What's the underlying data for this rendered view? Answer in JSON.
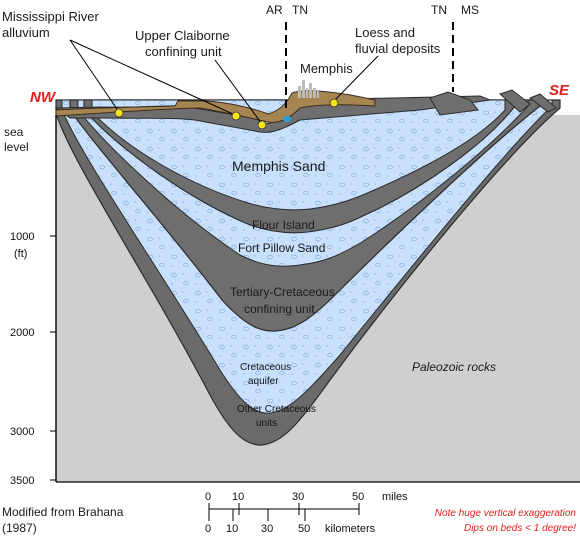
{
  "colors": {
    "sand": "#c8e0fb",
    "clay": "#6e6e6e",
    "paleozoic": "#cfcfcf",
    "alluvium": "#a78553",
    "point": "#f7e51a",
    "river": "#2aa0da",
    "accent_red": "#e0201b"
  },
  "direction": {
    "left": "NW",
    "right": "SE"
  },
  "state_lines": {
    "line1": "AR",
    "line1b": "TN",
    "line2": "TN",
    "line2b": "MS"
  },
  "callouts": {
    "alluvium_1": "Mississippi River",
    "alluvium_2": "alluvium",
    "claiborne_1": "Upper Claiborne",
    "claiborne_2": "confining unit",
    "loess_1": "Loess and",
    "loess_2": "fluvial deposits",
    "city": "Memphis"
  },
  "units": {
    "memphis_sand": "Memphis Sand",
    "flour_island": "Flour Island",
    "fort_pillow": "Fort Pillow Sand",
    "tertiary_1": "Tertiary-Cretaceous",
    "tertiary_2": "confining unit",
    "cretaceous_1": "Cretaceous",
    "cretaceous_2": "aquifer",
    "other_1": "Other Cretaceous",
    "other_2": "units",
    "paleozoic": "Paleozoic rocks"
  },
  "depth_axis": {
    "sea_1": "sea",
    "sea_2": "level",
    "ticks": [
      "1000",
      "2000",
      "3000",
      "3500"
    ],
    "unit": "(ft)"
  },
  "scale_bar": {
    "miles_ticks": [
      "0",
      "10",
      "30",
      "50"
    ],
    "miles_label": "miles",
    "km_ticks": [
      "0",
      "10",
      "30",
      "50"
    ],
    "km_label": "kilometers"
  },
  "credit": {
    "line1": "Modified from Brahana",
    "line2": "(1987)"
  },
  "note": {
    "line1": "Note huge vertical exaggeration",
    "line2": "Dips on beds < 1 degree!"
  }
}
